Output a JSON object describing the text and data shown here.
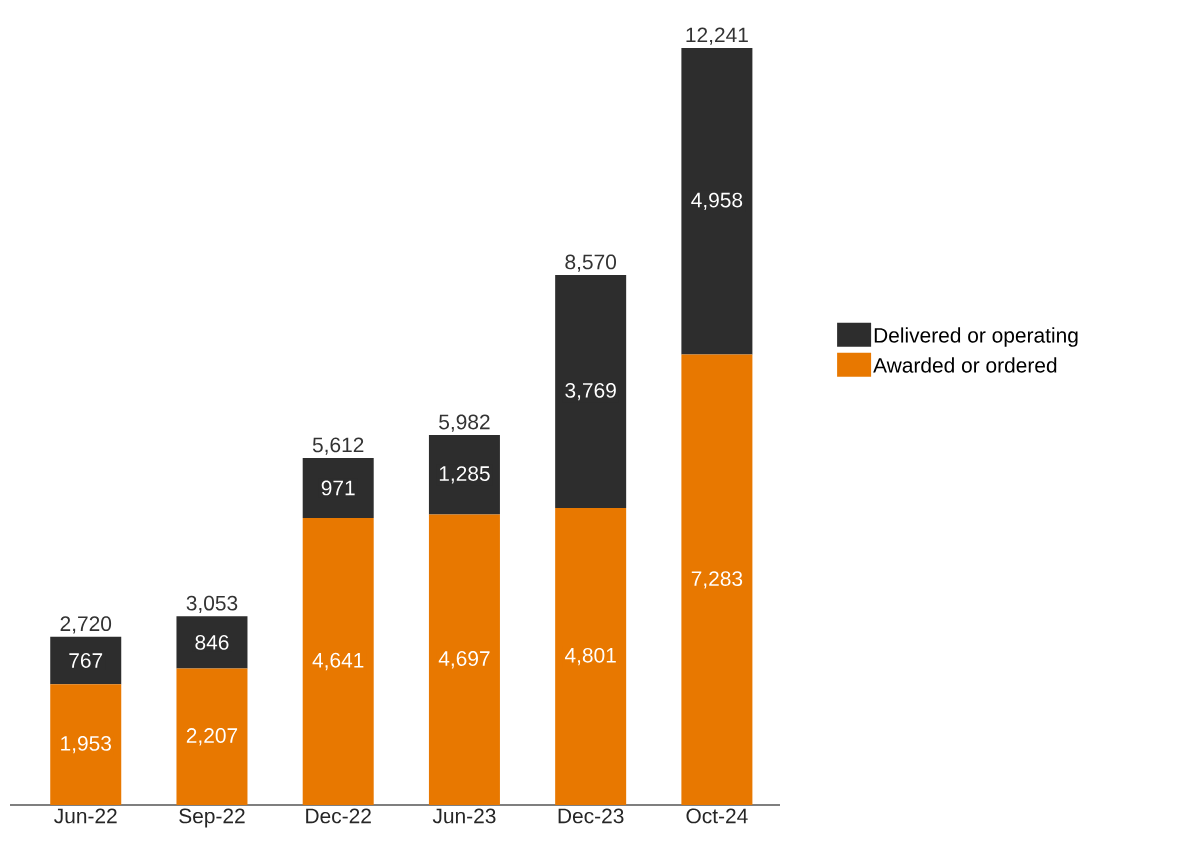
{
  "chart_data": {
    "type": "bar",
    "stacked": true,
    "categories": [
      "Jun-22",
      "Sep-22",
      "Dec-22",
      "Jun-23",
      "Dec-23",
      "Oct-24"
    ],
    "series": [
      {
        "name": "Awarded or ordered",
        "color": "#e87800",
        "values": [
          1953,
          2207,
          4641,
          4697,
          4801,
          7283
        ],
        "value_labels": [
          "1,953",
          "2,207",
          "4,641",
          "4,697",
          "4,801",
          "7,283"
        ]
      },
      {
        "name": "Delivered or operating",
        "color": "#2d2d2d",
        "values": [
          767,
          846,
          971,
          1285,
          3769,
          4958
        ],
        "value_labels": [
          "767",
          "846",
          "971",
          "1,285",
          "3,769",
          "4,958"
        ]
      }
    ],
    "totals": [
      "2,720",
      "3,053",
      "5,612",
      "5,982",
      "8,570",
      "12,241"
    ],
    "legend": "right"
  }
}
